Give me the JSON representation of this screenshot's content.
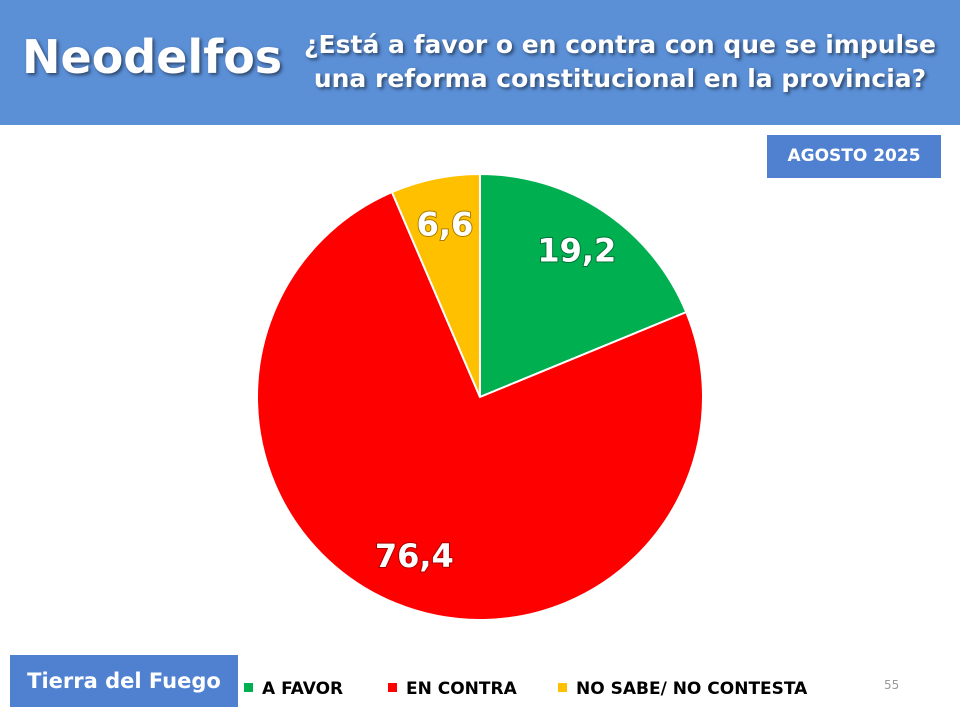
{
  "slide": {
    "brand": "Neodelfos",
    "region": "Tierra del Fuego",
    "page": "55"
  },
  "chart_data": {
    "type": "pie",
    "title": "¿Está a favor o en contra con que se impulse una reforma constitucional en la provincia?",
    "subtitle": "AGOSTO 2025",
    "categories": [
      "A FAVOR",
      "EN CONTRA",
      "NO SABE/ NO CONTESTA"
    ],
    "values": [
      19.2,
      76.4,
      6.6
    ],
    "value_labels": [
      "19,2",
      "76,4",
      "6,6"
    ],
    "colors": [
      "#00b050",
      "#ff0000",
      "#ffc000"
    ]
  }
}
